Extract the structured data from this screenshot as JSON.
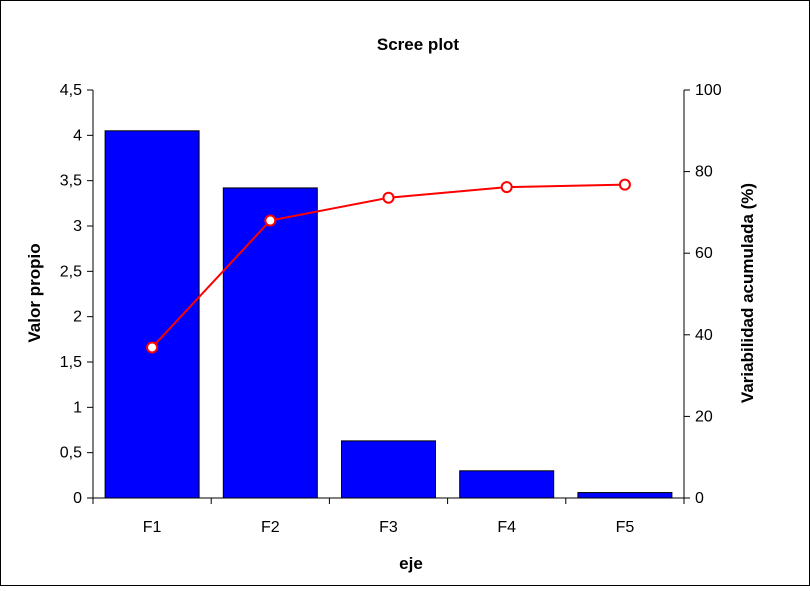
{
  "chart_data": {
    "type": "bar",
    "title": "Scree plot",
    "xlabel": "eje",
    "ylabel": "Valor propio",
    "y2label": "Variabilidad acumulada (%)",
    "categories": [
      "F1",
      "F2",
      "F3",
      "F4",
      "F5"
    ],
    "series": [
      {
        "type": "bar",
        "axis": "left",
        "values": [
          4.05,
          3.42,
          0.63,
          0.3,
          0.06
        ]
      },
      {
        "type": "line",
        "axis": "right",
        "values": [
          36.9,
          68.0,
          73.6,
          76.2,
          76.8
        ]
      }
    ],
    "ylim": [
      0,
      4.5
    ],
    "y2lim": [
      0,
      100
    ],
    "yticks": [
      "0",
      "0,5",
      "1",
      "1,5",
      "2",
      "2,5",
      "3",
      "3,5",
      "4",
      "4,5"
    ],
    "y2ticks": [
      "0",
      "20",
      "40",
      "60",
      "80",
      "100"
    ],
    "grid": false,
    "legend": "none",
    "colors": {
      "bar_fill": "#0000ff",
      "bar_stroke": "#000000",
      "line": "#ff0000",
      "marker_fill": "#ffffff"
    }
  }
}
